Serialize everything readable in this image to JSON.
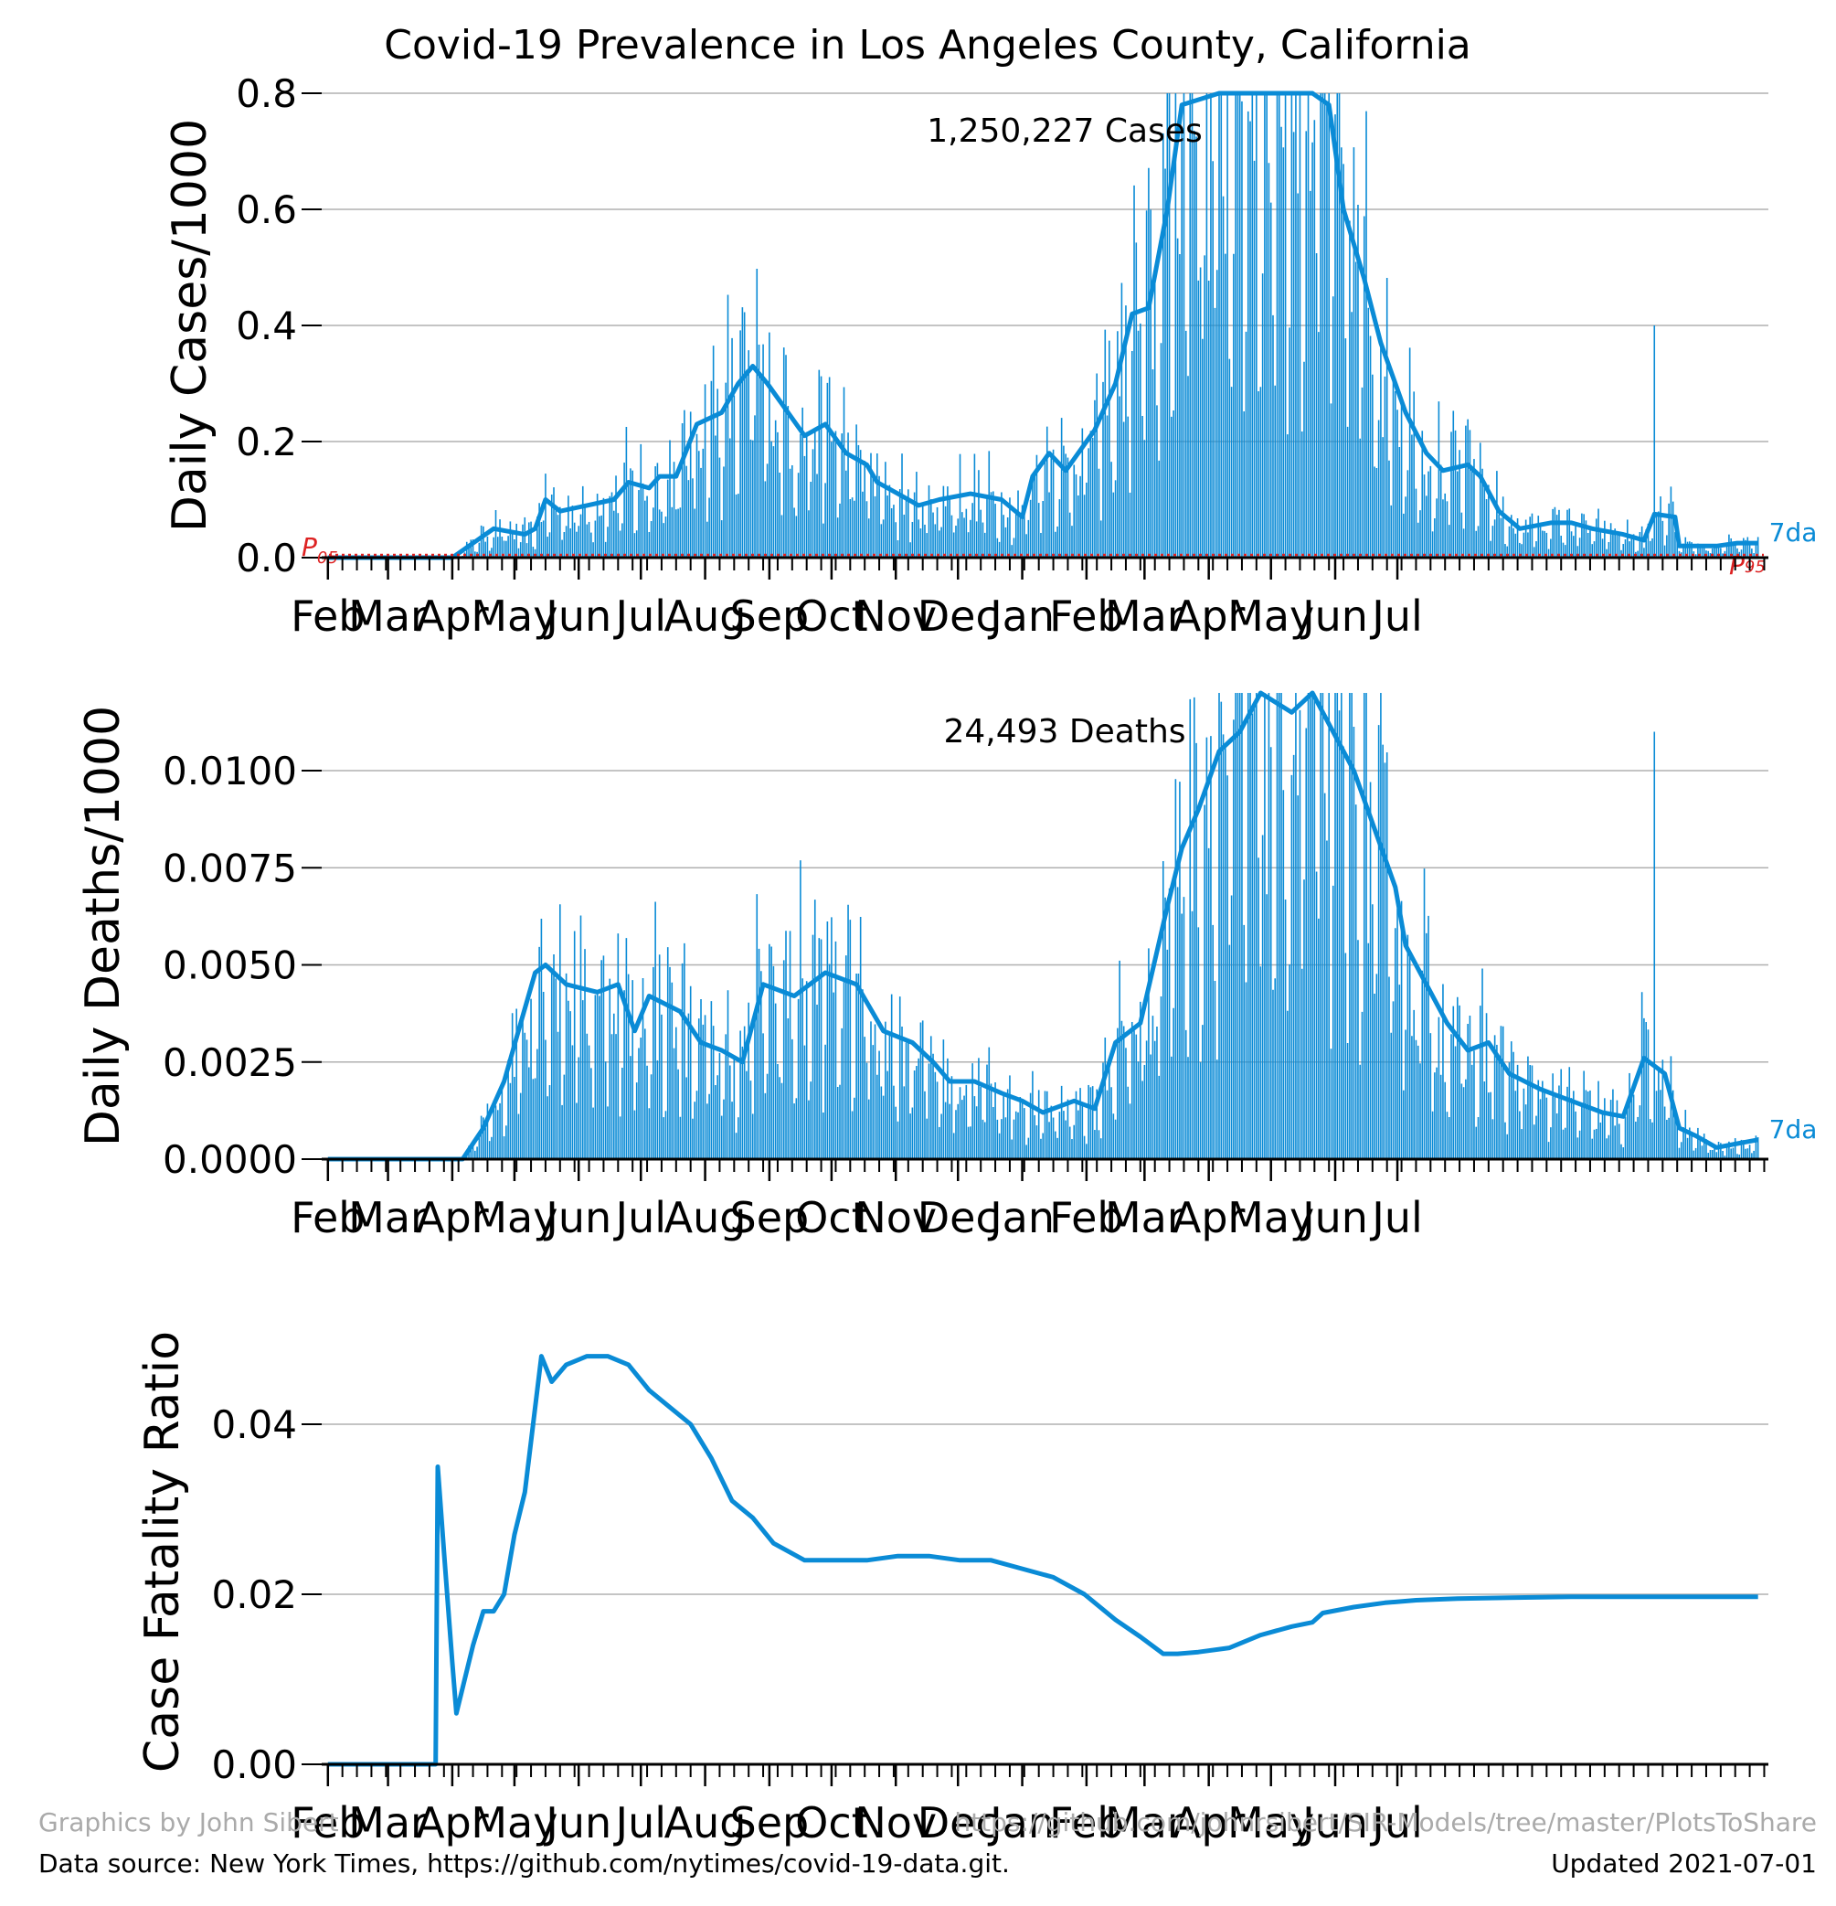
{
  "title": "Covid-19 Prevalence in Los Angeles County, California",
  "colors": {
    "series": "#0a8bd6",
    "reference": "#dd2222",
    "grid": "#b0b0b0",
    "axis": "#000000"
  },
  "months": [
    "Feb",
    "Mar",
    "Apr",
    "May",
    "Jun",
    "Jul",
    "Aug",
    "Sep",
    "Oct",
    "Nov",
    "Dec",
    "Jan",
    "Feb",
    "Mar",
    "Apr",
    "May",
    "Jun",
    "Jul"
  ],
  "footer": {
    "credit": "Graphics by John Sibert",
    "repo": "https://github.com/johnrsibert/SIR-Models/tree/master/PlotsToShare",
    "source": "Data source: New York Times, https://github.com/nytimes/covid-19-data.git.",
    "updated": "Updated 2021-07-01"
  },
  "chart_data": [
    {
      "type": "bar",
      "ylabel": "Daily Cases/1000",
      "annotation": "1,250,227 Cases",
      "ylim": [
        0,
        0.8
      ],
      "yticks": [
        "0.0",
        "0.2",
        "0.4",
        "0.6",
        "0.8"
      ],
      "end_label": "7da",
      "reference_left": "P05",
      "reference_right": "P95",
      "grid": true,
      "moving_average_7da": [
        [
          0,
          0
        ],
        [
          60,
          0
        ],
        [
          72,
          0.03
        ],
        [
          80,
          0.05
        ],
        [
          95,
          0.04
        ],
        [
          100,
          0.05
        ],
        [
          105,
          0.1
        ],
        [
          112,
          0.08
        ],
        [
          125,
          0.09
        ],
        [
          138,
          0.1
        ],
        [
          145,
          0.13
        ],
        [
          155,
          0.12
        ],
        [
          160,
          0.14
        ],
        [
          168,
          0.14
        ],
        [
          178,
          0.23
        ],
        [
          190,
          0.25
        ],
        [
          198,
          0.3
        ],
        [
          205,
          0.33
        ],
        [
          212,
          0.3
        ],
        [
          218,
          0.27
        ],
        [
          222,
          0.25
        ],
        [
          230,
          0.21
        ],
        [
          240,
          0.23
        ],
        [
          250,
          0.18
        ],
        [
          260,
          0.16
        ],
        [
          265,
          0.13
        ],
        [
          275,
          0.11
        ],
        [
          285,
          0.09
        ],
        [
          295,
          0.1
        ],
        [
          310,
          0.11
        ],
        [
          325,
          0.1
        ],
        [
          335,
          0.07
        ],
        [
          340,
          0.14
        ],
        [
          348,
          0.18
        ],
        [
          356,
          0.15
        ],
        [
          370,
          0.22
        ],
        [
          380,
          0.3
        ],
        [
          388,
          0.42
        ],
        [
          396,
          0.43
        ],
        [
          405,
          0.6
        ],
        [
          412,
          0.78
        ],
        [
          430,
          0.8
        ],
        [
          440,
          0.8
        ],
        [
          450,
          0.84
        ],
        [
          465,
          0.84
        ],
        [
          475,
          0.82
        ],
        [
          483,
          0.78
        ],
        [
          490,
          0.6
        ],
        [
          500,
          0.48
        ],
        [
          508,
          0.37
        ],
        [
          515,
          0.3
        ],
        [
          520,
          0.25
        ],
        [
          530,
          0.18
        ],
        [
          538,
          0.15
        ],
        [
          550,
          0.16
        ],
        [
          556,
          0.14
        ],
        [
          565,
          0.08
        ],
        [
          575,
          0.05
        ],
        [
          590,
          0.06
        ],
        [
          600,
          0.06
        ],
        [
          610,
          0.05
        ],
        [
          625,
          0.04
        ],
        [
          635,
          0.03
        ],
        [
          640,
          0.075
        ],
        [
          650,
          0.07
        ],
        [
          652,
          0.02
        ],
        [
          660,
          0.02
        ],
        [
          670,
          0.02
        ],
        [
          680,
          0.025
        ],
        [
          690,
          0.025
        ]
      ],
      "spike": {
        "x": 640,
        "value": 0.4
      }
    },
    {
      "type": "bar",
      "ylabel": "Daily Deaths/1000",
      "annotation": "24,493 Deaths",
      "ylim": [
        0,
        0.012
      ],
      "yticks": [
        "0.0000",
        "0.0025",
        "0.0050",
        "0.0075",
        "0.0100"
      ],
      "end_label": "7da",
      "grid": true,
      "moving_average_7da": [
        [
          0,
          0
        ],
        [
          65,
          0
        ],
        [
          75,
          0.0008
        ],
        [
          85,
          0.002
        ],
        [
          93,
          0.0035
        ],
        [
          100,
          0.0048
        ],
        [
          105,
          0.005
        ],
        [
          115,
          0.0045
        ],
        [
          130,
          0.0043
        ],
        [
          140,
          0.0045
        ],
        [
          148,
          0.0033
        ],
        [
          155,
          0.0042
        ],
        [
          170,
          0.0038
        ],
        [
          180,
          0.003
        ],
        [
          190,
          0.0028
        ],
        [
          200,
          0.0025
        ],
        [
          210,
          0.0045
        ],
        [
          225,
          0.0042
        ],
        [
          240,
          0.0048
        ],
        [
          255,
          0.0045
        ],
        [
          268,
          0.0033
        ],
        [
          282,
          0.003
        ],
        [
          292,
          0.0025
        ],
        [
          300,
          0.002
        ],
        [
          312,
          0.002
        ],
        [
          325,
          0.0017
        ],
        [
          335,
          0.0015
        ],
        [
          345,
          0.0012
        ],
        [
          360,
          0.0015
        ],
        [
          370,
          0.0013
        ],
        [
          380,
          0.003
        ],
        [
          392,
          0.0035
        ],
        [
          405,
          0.0065
        ],
        [
          412,
          0.008
        ],
        [
          420,
          0.009
        ],
        [
          430,
          0.0105
        ],
        [
          440,
          0.011
        ],
        [
          450,
          0.012
        ],
        [
          465,
          0.0115
        ],
        [
          475,
          0.012
        ],
        [
          485,
          0.011
        ],
        [
          495,
          0.01
        ],
        [
          505,
          0.0085
        ],
        [
          515,
          0.007
        ],
        [
          520,
          0.0055
        ],
        [
          530,
          0.0045
        ],
        [
          540,
          0.0035
        ],
        [
          550,
          0.0028
        ],
        [
          560,
          0.003
        ],
        [
          570,
          0.0022
        ],
        [
          585,
          0.0018
        ],
        [
          600,
          0.0015
        ],
        [
          615,
          0.0012
        ],
        [
          625,
          0.0011
        ],
        [
          635,
          0.0026
        ],
        [
          645,
          0.0022
        ],
        [
          652,
          0.0008
        ],
        [
          660,
          0.0006
        ],
        [
          670,
          0.0003
        ],
        [
          680,
          0.0004
        ],
        [
          690,
          0.0005
        ]
      ],
      "spike": {
        "x": 640,
        "value": 0.011
      }
    },
    {
      "type": "line",
      "ylabel": "Case Fatality Ratio",
      "ylim": [
        0,
        0.05
      ],
      "yticks": [
        "0.00",
        "0.02",
        "0.04"
      ],
      "grid": true,
      "values": [
        [
          0,
          0
        ],
        [
          52,
          0
        ],
        [
          53,
          0.035
        ],
        [
          56,
          0.025
        ],
        [
          60,
          0.012
        ],
        [
          62,
          0.006
        ],
        [
          66,
          0.01
        ],
        [
          70,
          0.014
        ],
        [
          75,
          0.018
        ],
        [
          80,
          0.018
        ],
        [
          85,
          0.02
        ],
        [
          90,
          0.027
        ],
        [
          95,
          0.032
        ],
        [
          100,
          0.042
        ],
        [
          103,
          0.048
        ],
        [
          108,
          0.045
        ],
        [
          115,
          0.047
        ],
        [
          125,
          0.048
        ],
        [
          135,
          0.048
        ],
        [
          145,
          0.047
        ],
        [
          155,
          0.044
        ],
        [
          165,
          0.042
        ],
        [
          175,
          0.04
        ],
        [
          185,
          0.036
        ],
        [
          195,
          0.031
        ],
        [
          205,
          0.029
        ],
        [
          215,
          0.026
        ],
        [
          230,
          0.024
        ],
        [
          245,
          0.024
        ],
        [
          260,
          0.024
        ],
        [
          275,
          0.0245
        ],
        [
          290,
          0.0245
        ],
        [
          305,
          0.024
        ],
        [
          320,
          0.024
        ],
        [
          335,
          0.023
        ],
        [
          350,
          0.022
        ],
        [
          365,
          0.02
        ],
        [
          380,
          0.017
        ],
        [
          392,
          0.015
        ],
        [
          403,
          0.013
        ],
        [
          410,
          0.013
        ],
        [
          420,
          0.0132
        ],
        [
          435,
          0.0137
        ],
        [
          450,
          0.0152
        ],
        [
          465,
          0.0162
        ],
        [
          475,
          0.0167
        ],
        [
          480,
          0.0178
        ],
        [
          495,
          0.0185
        ],
        [
          510,
          0.019
        ],
        [
          525,
          0.0193
        ],
        [
          545,
          0.0195
        ],
        [
          570,
          0.0196
        ],
        [
          600,
          0.0197
        ],
        [
          630,
          0.0197
        ],
        [
          660,
          0.0197
        ],
        [
          690,
          0.0197
        ]
      ]
    }
  ]
}
